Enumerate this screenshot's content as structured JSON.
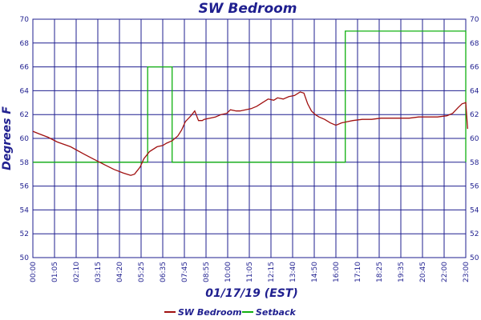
{
  "chart_data": {
    "type": "line",
    "title": "SW Bedroom",
    "xlabel": "01/17/19 (EST)",
    "ylabel": "Degrees F",
    "ylim": [
      50,
      70
    ],
    "y_ticks": [
      50,
      52,
      54,
      56,
      58,
      60,
      62,
      64,
      66,
      68,
      70
    ],
    "x_ticks": [
      "00:00",
      "01:05",
      "02:10",
      "03:15",
      "04:20",
      "05:25",
      "06:35",
      "07:45",
      "08:55",
      "10:00",
      "11:05",
      "12:15",
      "13:40",
      "14:50",
      "16:00",
      "17:10",
      "18:25",
      "19:35",
      "20:45",
      "22:00",
      "23:00"
    ],
    "grid": true,
    "legend_position": "bottom",
    "colors": {
      "axis": "#1f1f8f",
      "grid": "#1f1f8f"
    },
    "series": [
      {
        "name": "SW Bedroom",
        "color": "#a01010",
        "x": [
          0.0,
          0.3,
          0.8,
          1.3,
          2.0,
          2.7,
          3.3,
          3.8,
          4.3,
          4.8,
          5.0,
          5.2,
          5.4,
          5.7,
          5.9,
          6.2,
          6.6,
          6.9,
          7.1,
          7.4,
          7.7,
          7.9,
          8.1,
          8.4,
          8.6,
          8.8,
          9.0,
          9.1,
          9.4,
          9.7,
          10.0,
          10.3,
          10.5,
          10.8,
          11.0,
          11.3,
          11.6,
          11.9,
          12.2,
          12.5,
          12.8,
          13.0,
          13.3,
          13.6,
          13.9,
          14.2,
          14.4,
          14.6,
          14.8,
          15.0,
          15.2,
          15.5,
          15.8,
          16.1,
          16.4,
          16.7,
          17.0,
          17.5,
          18.0,
          18.5,
          19.0,
          19.5,
          20.0,
          20.5,
          21.0,
          21.5,
          22.0,
          22.3,
          22.6,
          22.8,
          23.0,
          23.1
        ],
        "values": [
          60.6,
          60.4,
          60.1,
          59.7,
          59.3,
          58.7,
          58.2,
          57.8,
          57.4,
          57.1,
          57.0,
          56.9,
          57.0,
          57.6,
          58.3,
          58.9,
          59.3,
          59.4,
          59.6,
          59.8,
          60.2,
          60.7,
          61.4,
          61.9,
          62.3,
          61.5,
          61.5,
          61.6,
          61.7,
          61.8,
          62.0,
          62.1,
          62.4,
          62.3,
          62.3,
          62.4,
          62.5,
          62.7,
          63.0,
          63.3,
          63.2,
          63.4,
          63.3,
          63.5,
          63.6,
          63.9,
          63.8,
          62.9,
          62.3,
          62.0,
          61.8,
          61.6,
          61.3,
          61.1,
          61.3,
          61.4,
          61.5,
          61.6,
          61.6,
          61.7,
          61.7,
          61.7,
          61.7,
          61.8,
          61.8,
          61.8,
          61.9,
          62.1,
          62.6,
          62.9,
          63.0,
          60.8
        ]
      },
      {
        "name": "Setback",
        "color": "#10b010",
        "x": [
          0.0,
          6.1,
          6.1,
          7.4,
          7.4,
          16.6,
          16.6,
          23.0,
          23.0
        ],
        "values": [
          58,
          58,
          66,
          66,
          58,
          58,
          69,
          69,
          58
        ]
      }
    ]
  }
}
